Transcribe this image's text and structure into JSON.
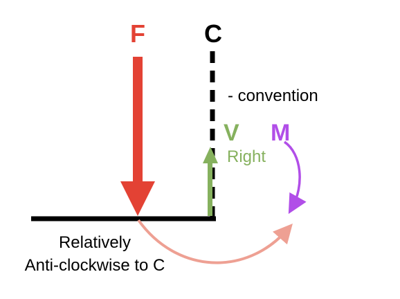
{
  "labels": {
    "force": "F",
    "cut_point": "C",
    "sign_convention": "- convention",
    "shear": "V",
    "moment": "M",
    "side": "Right",
    "note_line1": "Relatively",
    "note_line2": "Anti-clockwise to C"
  },
  "colors": {
    "force": "#e34234",
    "shear": "#86b15e",
    "moment": "#b14ee8",
    "rotation": "#eea093",
    "beam": "#000000"
  }
}
